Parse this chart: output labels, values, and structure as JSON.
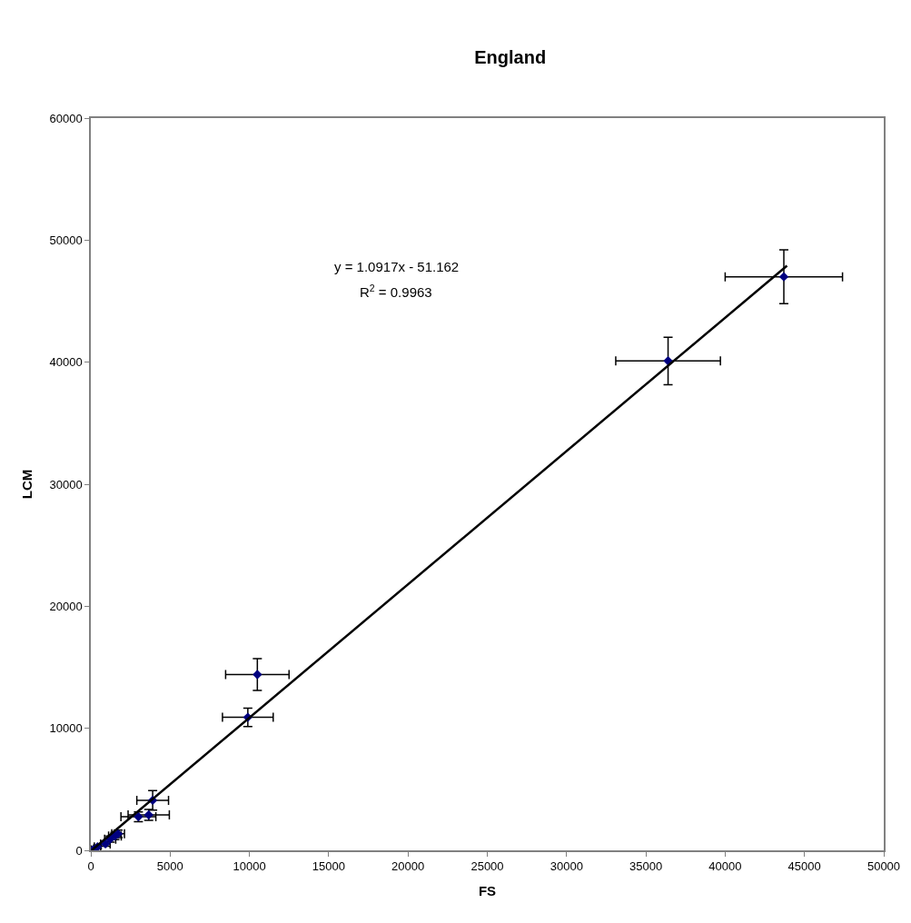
{
  "chart_data": {
    "type": "scatter",
    "title": "England",
    "xlabel": "FS",
    "ylabel": "LCM",
    "xlim": [
      0,
      50000
    ],
    "ylim": [
      0,
      60000
    ],
    "xticks": [
      0,
      5000,
      10000,
      15000,
      20000,
      25000,
      30000,
      35000,
      40000,
      45000,
      50000
    ],
    "yticks": [
      0,
      10000,
      20000,
      30000,
      40000,
      50000,
      60000
    ],
    "grid": false,
    "series": [
      {
        "color": "#000080",
        "marker": "diamond",
        "x": [
          43700,
          36400,
          10500,
          9900,
          3900,
          3000,
          3650,
          1720,
          1520,
          1220,
          920,
          420,
          120
        ],
        "values": [
          47000,
          40100,
          14400,
          10900,
          4100,
          2750,
          2900,
          1350,
          1170,
          920,
          530,
          280,
          30
        ],
        "xerrors": [
          3700,
          3300,
          2000,
          1600,
          1000,
          1100,
          1300,
          400,
          400,
          350,
          300,
          200,
          100
        ],
        "errors": [
          2200,
          1950,
          1300,
          750,
          800,
          400,
          450,
          300,
          300,
          250,
          200,
          150,
          50
        ]
      },
      {
        "type": "line",
        "color": "#000000",
        "line_style": "solid",
        "marker": "none",
        "x": [
          50,
          43900
        ],
        "values": [
          0,
          47900
        ]
      }
    ],
    "annotations": [
      "y = 1.0917x - 51.162",
      "R$^{2}$ = 0.9963"
    ]
  }
}
